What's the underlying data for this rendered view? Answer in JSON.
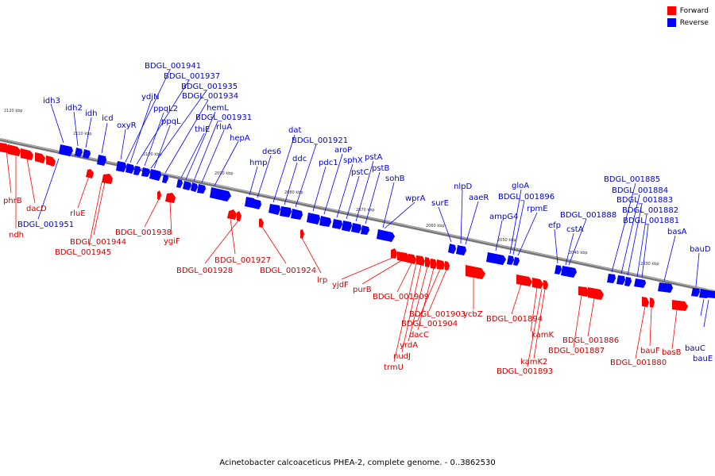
{
  "legend": {
    "forward": {
      "label": "Forward",
      "color": "#ff0000"
    },
    "reverse": {
      "label": "Reverse",
      "color": "#0000ff"
    }
  },
  "caption": "Acinetobacter calcoaceticus PHEA-2, complete genome. - 0..3862530",
  "ticks": [
    "2120 kbp",
    "2110 kbp",
    "2100 kbp",
    "2090 kbp",
    "2080 kbp",
    "2070 kbp",
    "2060 kbp",
    "2050 kbp",
    "2040 kbp",
    "2030 kbp"
  ],
  "reverse_genes": [
    "idh3",
    "idh2",
    "idh",
    "icd",
    "oxyR",
    "BDGL_001941",
    "ydjN",
    "BDGL_001937",
    "ppqL2",
    "BDGL_001935",
    "ppqL",
    "BDGL_001934",
    "hemL",
    "thiE",
    "BDGL_001931",
    "rluA",
    "hepA",
    "hmp",
    "des6",
    "dat",
    "BDGL_001921",
    "ddc",
    "aroP",
    "pdc1",
    "sphX",
    "pstA",
    "pstC",
    "pstB",
    "sohB",
    "wprA",
    "surE",
    "nlpD",
    "aaeR",
    "gloA",
    "BDGL_001896",
    "ampG4",
    "rpmE",
    "efp",
    "BDGL_001888",
    "cstA",
    "BDGL_001885",
    "BDGL_001884",
    "BDGL_001883",
    "BDGL_001882",
    "BDGL_001881",
    "basA",
    "bauD",
    "BDGL_001951",
    "bauC",
    "bauE"
  ],
  "forward_genes": [
    "phrB",
    "dacD",
    "ndh",
    "rluE",
    "BDGL_001944",
    "BDGL_001945",
    "BDGL_001938",
    "ygiF",
    "BDGL_001927",
    "BDGL_001928",
    "BDGL_001924",
    "lrp",
    "yjdF",
    "purB",
    "BDGL_001909",
    "BDGL_001903",
    "BDGL_001904",
    "dacC",
    "yrdA",
    "nudJ",
    "trmU",
    "ycbZ",
    "BDGL_001894",
    "kamK",
    "kamK2",
    "BDGL_001893",
    "BDGL_001886",
    "BDGL_001887",
    "bauF",
    "BDGL_001880",
    "basB"
  ]
}
